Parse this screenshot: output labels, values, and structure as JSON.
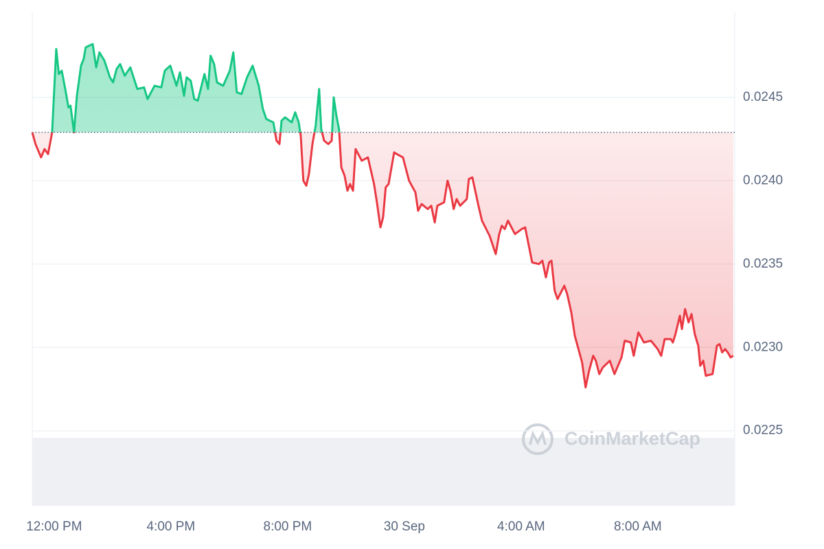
{
  "chart_data": {
    "type": "line",
    "watermark": "CoinMarketCap",
    "baseline": 0.02429,
    "color_up": "#16c784",
    "color_down": "#ea3943",
    "xlim": [
      -0.75,
      23.32
    ],
    "ylim": [
      0.02205,
      0.02501
    ],
    "xticks": [
      {
        "value": 0,
        "label": "12:00 PM"
      },
      {
        "value": 4,
        "label": "4:00 PM"
      },
      {
        "value": 8,
        "label": "8:00 PM"
      },
      {
        "value": 12,
        "label": "30 Sep"
      },
      {
        "value": 16,
        "label": "4:00 AM"
      },
      {
        "value": 20,
        "label": "8:00 AM"
      }
    ],
    "yticks": [
      0.0225,
      {
        "value": 0.023,
        "label": "0.0230"
      },
      0.0235,
      {
        "value": 0.024,
        "label": "0.0240"
      },
      0.0245
    ],
    "grid": true,
    "x": [
      -0.75,
      -0.64,
      -0.45,
      -0.33,
      -0.21,
      -0.07,
      0.07,
      0.16,
      0.26,
      0.38,
      0.49,
      0.56,
      0.68,
      0.78,
      0.92,
      1.01,
      1.08,
      1.32,
      1.44,
      1.55,
      1.72,
      1.91,
      2.02,
      2.14,
      2.26,
      2.42,
      2.61,
      2.85,
      3.08,
      3.2,
      3.44,
      3.67,
      3.79,
      3.98,
      4.19,
      4.31,
      4.45,
      4.54,
      4.68,
      4.8,
      4.92,
      5.15,
      5.27,
      5.36,
      5.48,
      5.58,
      5.79,
      6.02,
      6.14,
      6.26,
      6.42,
      6.61,
      6.8,
      7.01,
      7.15,
      7.27,
      7.51,
      7.62,
      7.72,
      7.79,
      7.91,
      8.14,
      8.26,
      8.38,
      8.45,
      8.54,
      8.64,
      8.73,
      8.85,
      8.96,
      9.08,
      9.15,
      9.25,
      9.39,
      9.51,
      9.58,
      9.67,
      9.76,
      9.84,
      9.95,
      10.05,
      10.14,
      10.24,
      10.33,
      10.54,
      10.75,
      10.96,
      11.06,
      11.18,
      11.27,
      11.36,
      11.46,
      11.65,
      11.74,
      11.95,
      12.16,
      12.38,
      12.47,
      12.59,
      12.8,
      12.92,
      13.04,
      13.13,
      13.36,
      13.48,
      13.58,
      13.69,
      13.79,
      13.91,
      14.14,
      14.21,
      14.33,
      14.54,
      14.66,
      14.92,
      15.13,
      15.25,
      15.34,
      15.44,
      15.55,
      15.79,
      16.02,
      16.14,
      16.38,
      16.61,
      16.73,
      16.85,
      16.96,
      17.04,
      17.15,
      17.25,
      17.48,
      17.58,
      17.72,
      17.84,
      18.09,
      18.21,
      18.33,
      18.47,
      18.56,
      18.68,
      18.8,
      19.04,
      19.2,
      19.44,
      19.55,
      19.76,
      19.86,
      20.02,
      20.21,
      20.45,
      20.68,
      20.8,
      20.92,
      21.13,
      21.2,
      21.29,
      21.44,
      21.51,
      21.62,
      21.74,
      21.84,
      21.95,
      22.07,
      22.14,
      22.24,
      22.33,
      22.56,
      22.71,
      22.8,
      22.89,
      22.99,
      23.08,
      23.18,
      23.27
    ],
    "values": [
      0.02429,
      0.02422,
      0.02414,
      0.02419,
      0.02416,
      0.02429,
      0.02479,
      0.02464,
      0.02466,
      0.02455,
      0.02444,
      0.02445,
      0.02429,
      0.02451,
      0.02469,
      0.02473,
      0.0248,
      0.02482,
      0.02468,
      0.02477,
      0.02472,
      0.02462,
      0.02459,
      0.02467,
      0.0247,
      0.02463,
      0.02468,
      0.02455,
      0.02456,
      0.02449,
      0.02457,
      0.02456,
      0.02466,
      0.02469,
      0.02457,
      0.02465,
      0.02451,
      0.02462,
      0.0246,
      0.02449,
      0.02448,
      0.02464,
      0.02455,
      0.02475,
      0.0247,
      0.02459,
      0.02457,
      0.02466,
      0.02477,
      0.02453,
      0.02452,
      0.02462,
      0.02469,
      0.02457,
      0.02443,
      0.02437,
      0.02435,
      0.02424,
      0.02422,
      0.02436,
      0.02438,
      0.02435,
      0.02441,
      0.02435,
      0.02427,
      0.024,
      0.02397,
      0.02404,
      0.02422,
      0.02433,
      0.02455,
      0.02431,
      0.02424,
      0.02422,
      0.02424,
      0.0245,
      0.02439,
      0.02431,
      0.02408,
      0.02403,
      0.02394,
      0.02398,
      0.02394,
      0.02419,
      0.02412,
      0.02414,
      0.02398,
      0.02387,
      0.02372,
      0.02378,
      0.02396,
      0.02398,
      0.02417,
      0.02416,
      0.02414,
      0.024,
      0.02393,
      0.02382,
      0.02386,
      0.02383,
      0.02385,
      0.02375,
      0.02385,
      0.02387,
      0.024,
      0.02394,
      0.02383,
      0.02389,
      0.02385,
      0.02389,
      0.02401,
      0.02402,
      0.02385,
      0.02376,
      0.02367,
      0.02356,
      0.02368,
      0.02373,
      0.02371,
      0.02376,
      0.02368,
      0.02371,
      0.02372,
      0.02351,
      0.0235,
      0.02352,
      0.02342,
      0.02351,
      0.02352,
      0.02334,
      0.02329,
      0.02337,
      0.02332,
      0.02321,
      0.02307,
      0.02291,
      0.02276,
      0.02286,
      0.02295,
      0.02292,
      0.02284,
      0.02288,
      0.02292,
      0.02284,
      0.02294,
      0.02304,
      0.02303,
      0.02295,
      0.02309,
      0.02303,
      0.02304,
      0.02299,
      0.02295,
      0.02305,
      0.02305,
      0.02303,
      0.02308,
      0.02319,
      0.02311,
      0.02323,
      0.02315,
      0.0232,
      0.02308,
      0.02301,
      0.02289,
      0.02292,
      0.02283,
      0.02284,
      0.02301,
      0.02302,
      0.02297,
      0.02299,
      0.02297,
      0.02294,
      0.02295
    ]
  }
}
